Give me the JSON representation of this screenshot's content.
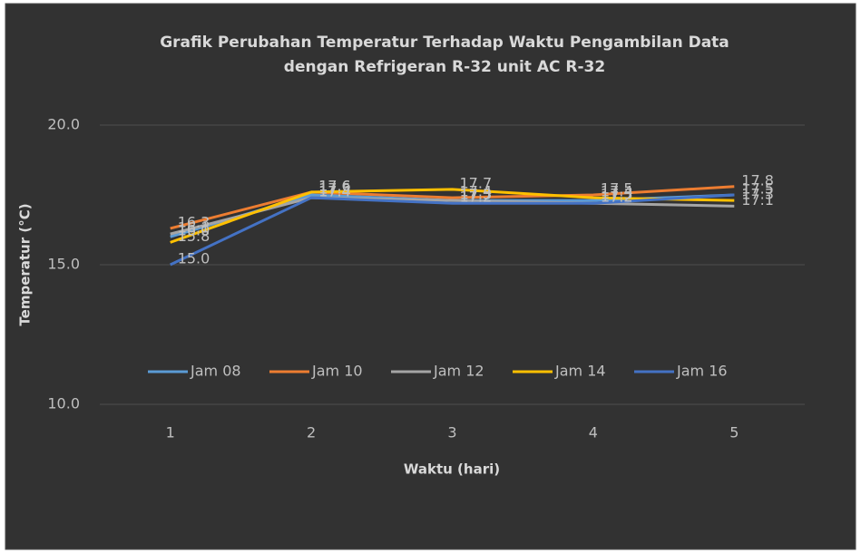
{
  "chart_data": {
    "type": "line",
    "title": [
      "Grafik  Perubahan Temperatur Terhadap Waktu Pengambilan Data",
      "dengan Refrigeran R-32 unit AC R-32"
    ],
    "x_label": "Waktu (hari)",
    "y_label": "Temperatur (°C)",
    "categories": [
      "1",
      "2",
      "3",
      "4",
      "5"
    ],
    "series": [
      {
        "name": "Jam 08",
        "color": "#5b9bd5",
        "values": [
          16.0,
          17.5,
          17.3,
          17.3,
          17.5
        ],
        "value_labels": [
          "16.0",
          "17.5",
          "17.3",
          "17.3",
          "17.5"
        ]
      },
      {
        "name": "Jam 10",
        "color": "#ed7d31",
        "values": [
          16.3,
          17.6,
          17.4,
          17.5,
          17.8
        ],
        "value_labels": [
          "16.3",
          "17.6",
          "17.4",
          "17.5",
          "17.8"
        ]
      },
      {
        "name": "Jam 12",
        "color": "#a5a5a5",
        "values": [
          16.1,
          17.4,
          17.3,
          17.2,
          17.1
        ],
        "value_labels": [
          "16.1",
          "17.4",
          "17.3",
          "17.2",
          "17.1"
        ]
      },
      {
        "name": "Jam 14",
        "color": "#ffc000",
        "values": [
          15.8,
          17.6,
          17.7,
          17.4,
          17.3
        ],
        "value_labels": [
          "15.8",
          "17.6",
          "17.7",
          "17.4",
          "17.3"
        ]
      },
      {
        "name": "Jam 16",
        "color": "#4472c4",
        "values": [
          15.0,
          17.4,
          17.2,
          17.2,
          17.5
        ],
        "value_labels": [
          "15.0",
          "17.4",
          "17.2",
          "17.2",
          "17.5"
        ]
      }
    ],
    "ylim": [
      10,
      20
    ],
    "yticks": [
      {
        "value": 10,
        "label": "10.0"
      },
      {
        "value": 15,
        "label": "15.0"
      },
      {
        "value": 20,
        "label": "20.0"
      }
    ],
    "grid": true,
    "legend": "bottom"
  }
}
